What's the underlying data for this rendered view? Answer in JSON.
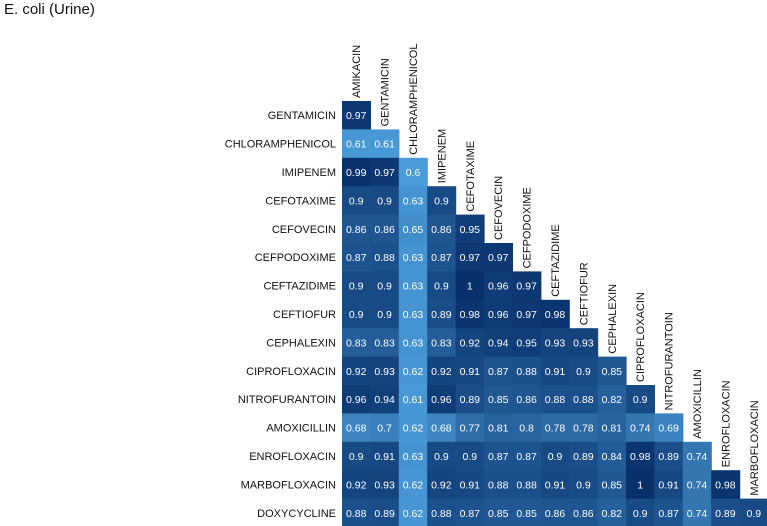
{
  "title": "E. coli (Urine)",
  "chart_data": {
    "type": "heatmap",
    "title": "E. coli (Urine)",
    "columns": [
      "AMIKACIN",
      "GENTAMICIN",
      "CHLORAMPHENICOL",
      "IMIPENEM",
      "CEFOTAXIME",
      "CEFOVECIN",
      "CEFPODOXIME",
      "CEFTAZIDIME",
      "CEFTIOFUR",
      "CEPHALEXIN",
      "CIPROFLOXACIN",
      "NITROFURANTOIN",
      "AMOXICILLIN",
      "ENROFLOXACIN",
      "MARBOFLOXACIN"
    ],
    "rows": [
      {
        "label": "GENTAMICIN",
        "values": [
          0.97
        ]
      },
      {
        "label": "CHLORAMPHENICOL",
        "values": [
          0.61,
          0.61
        ]
      },
      {
        "label": "IMIPENEM",
        "values": [
          0.99,
          0.97,
          0.6
        ]
      },
      {
        "label": "CEFOTAXIME",
        "values": [
          0.9,
          0.9,
          0.63,
          0.9
        ]
      },
      {
        "label": "CEFOVECIN",
        "values": [
          0.86,
          0.86,
          0.65,
          0.86,
          0.95
        ]
      },
      {
        "label": "CEFPODOXIME",
        "values": [
          0.87,
          0.88,
          0.63,
          0.87,
          0.97,
          0.97
        ]
      },
      {
        "label": "CEFTAZIDIME",
        "values": [
          0.9,
          0.9,
          0.63,
          0.9,
          1,
          0.96,
          0.97
        ]
      },
      {
        "label": "CEFTIOFUR",
        "values": [
          0.9,
          0.9,
          0.63,
          0.89,
          0.98,
          0.96,
          0.97,
          0.98
        ]
      },
      {
        "label": "CEPHALEXIN",
        "values": [
          0.83,
          0.83,
          0.63,
          0.83,
          0.92,
          0.94,
          0.95,
          0.93,
          0.93
        ]
      },
      {
        "label": "CIPROFLOXACIN",
        "values": [
          0.92,
          0.93,
          0.62,
          0.92,
          0.91,
          0.87,
          0.88,
          0.91,
          0.9,
          0.85
        ]
      },
      {
        "label": "NITROFURANTOIN",
        "values": [
          0.96,
          0.94,
          0.61,
          0.96,
          0.89,
          0.85,
          0.86,
          0.88,
          0.88,
          0.82,
          0.9
        ]
      },
      {
        "label": "AMOXICILLIN",
        "values": [
          0.68,
          0.7,
          0.62,
          0.68,
          0.77,
          0.81,
          0.8,
          0.78,
          0.78,
          0.81,
          0.74,
          0.69
        ]
      },
      {
        "label": "ENROFLOXACIN",
        "values": [
          0.9,
          0.91,
          0.63,
          0.9,
          0.9,
          0.87,
          0.87,
          0.9,
          0.89,
          0.84,
          0.98,
          0.89,
          0.74
        ]
      },
      {
        "label": "MARBOFLOXACIN",
        "values": [
          0.92,
          0.93,
          0.62,
          0.92,
          0.91,
          0.88,
          0.88,
          0.91,
          0.9,
          0.85,
          1,
          0.91,
          0.74,
          0.98
        ]
      },
      {
        "label": "DOXYCYCLINE",
        "values": [
          0.88,
          0.89,
          0.62,
          0.88,
          0.87,
          0.85,
          0.85,
          0.86,
          0.86,
          0.82,
          0.9,
          0.87,
          0.74,
          0.89,
          0.9
        ]
      }
    ],
    "color_scale": {
      "low": "#4a9bd8",
      "high": "#08306b",
      "domain": [
        0.6,
        1.0
      ]
    },
    "text_color": "#ffffff",
    "grid": false,
    "legend": "none"
  }
}
